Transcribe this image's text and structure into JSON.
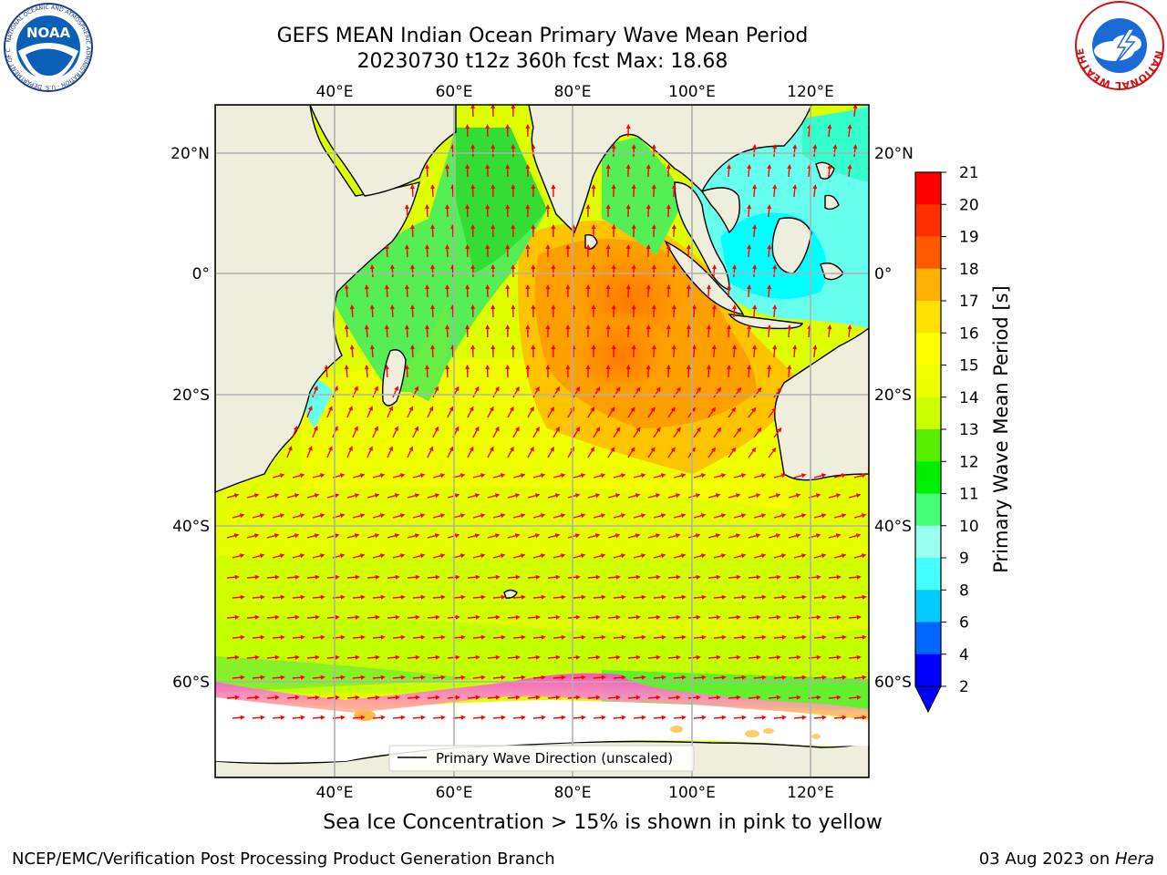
{
  "header": {
    "title_line1": "GEFS MEAN Indian Ocean Primary Wave Mean Period",
    "title_line2": "20230730 t12z 360h fcst   Max: 18.68"
  },
  "logos": {
    "left": {
      "text": "NOAA",
      "ring_text": "NATIONAL OCEANIC AND ATMOSPHERIC ADMINISTRATION · U.S. DEPARTMENT OF COMMERCE"
    },
    "right": {
      "ring_text": "NATIONAL WEATHER SERVICE"
    }
  },
  "map": {
    "lon_labels": [
      "40°E",
      "60°E",
      "80°E",
      "100°E",
      "120°E"
    ],
    "lat_labels": [
      "20°N",
      "0°",
      "20°S",
      "40°S",
      "60°S"
    ],
    "legend_label": "Primary Wave Direction (unscaled)"
  },
  "colorbar": {
    "label": "Primary Wave Mean Period [s]",
    "ticks": [
      "21",
      "20",
      "19",
      "18",
      "17",
      "16",
      "15",
      "14",
      "13",
      "12",
      "11",
      "10",
      "9",
      "8",
      "6",
      "4",
      "2"
    ],
    "colors": [
      "#ff0000",
      "#ff3000",
      "#ff5a00",
      "#ff8000",
      "#ffb000",
      "#ffe000",
      "#ffff00",
      "#eeff00",
      "#ccff00",
      "#99ff00",
      "#55ee00",
      "#00ee00",
      "#44ff77",
      "#99ffee",
      "#44ffff",
      "#00ffff",
      "#00ccff",
      "#0066ff",
      "#0000ff"
    ]
  },
  "note": "Sea Ice Concentration > 15% is shown in pink to yellow",
  "footer": {
    "left": "NCEP/EMC/Verification Post Processing Product Generation Branch",
    "date": "03 Aug 2023 on ",
    "machine": "Hera"
  }
}
